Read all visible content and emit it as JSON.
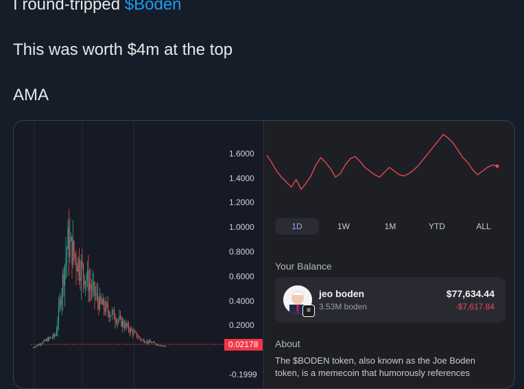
{
  "tweet": {
    "line1_prefix": "I round-tripped ",
    "line1_link": "$Boden",
    "line2": "This was worth $4m at the top",
    "line3": "AMA"
  },
  "chart_data": [
    {
      "type": "candlestick",
      "title": "",
      "y_ticks": [
        "1.6000",
        "1.4000",
        "1.2000",
        "1.0000",
        "0.8000",
        "0.6000",
        "0.4000",
        "0.2000",
        "-0.1999"
      ],
      "last_price_label": "0.02178",
      "ylim": [
        -0.2,
        1.7
      ],
      "peak_value": 1.1,
      "series_colors": {
        "up": "#26a69a",
        "down": "#ef5350"
      }
    },
    {
      "type": "line",
      "title": "",
      "color": "#e8474f",
      "values": [
        1.48,
        1.42,
        1.35,
        1.3,
        1.26,
        1.22,
        1.28,
        1.2,
        1.25,
        1.31,
        1.4,
        1.46,
        1.42,
        1.37,
        1.3,
        1.33,
        1.4,
        1.45,
        1.47,
        1.43,
        1.38,
        1.35,
        1.32,
        1.3,
        1.34,
        1.38,
        1.35,
        1.32,
        1.31,
        1.33,
        1.36,
        1.4,
        1.45,
        1.5,
        1.55,
        1.6,
        1.65,
        1.62,
        1.58,
        1.52,
        1.46,
        1.42,
        1.36,
        1.32,
        1.35,
        1.38,
        1.4,
        1.39
      ]
    }
  ],
  "app": {
    "range_tabs": [
      "1D",
      "1W",
      "1M",
      "YTD",
      "ALL"
    ],
    "active_tab": "1D",
    "balance_title": "Your Balance",
    "token_name": "jeo boden",
    "token_amount": "3.53M boden",
    "usd_value": "$77,634.44",
    "usd_change": "-$7,617.84",
    "about_title": "About",
    "about_text": "The $BODEN token, also known as the Joe Boden token, is a memecoin that humorously references"
  },
  "colors": {
    "background": "#151d28",
    "link": "#1d9bf0",
    "price_tag": "#f23645",
    "active_tab_text": "#a4a2ff"
  },
  "icons": {
    "avatar": "cartoon-boden-avatar",
    "chain_badge": "solana-badge-icon"
  }
}
